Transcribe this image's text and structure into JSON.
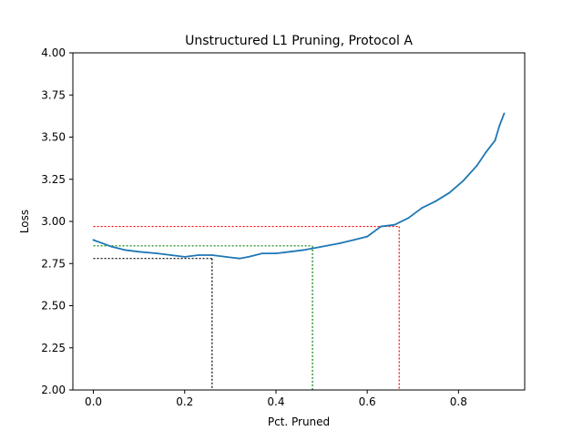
{
  "chart_data": {
    "type": "line",
    "title": "Unstructured L1 Pruning, Protocol A",
    "xlabel": "Pct. Pruned",
    "ylabel": "Loss",
    "xlim": [
      -0.045,
      0.945
    ],
    "ylim": [
      2.0,
      4.0
    ],
    "x_ticks": [
      0.0,
      0.2,
      0.4,
      0.6,
      0.8
    ],
    "x_tick_labels": [
      "0.0",
      "0.2",
      "0.4",
      "0.6",
      "0.8"
    ],
    "y_ticks": [
      2.0,
      2.25,
      2.5,
      2.75,
      3.0,
      3.25,
      3.5,
      3.75,
      4.0
    ],
    "y_tick_labels": [
      "2.00",
      "2.25",
      "2.50",
      "2.75",
      "3.00",
      "3.25",
      "3.50",
      "3.75",
      "4.00"
    ],
    "grid": false,
    "series": [
      {
        "color": "#1f77b4",
        "x": [
          0.0,
          0.02,
          0.04,
          0.07,
          0.1,
          0.14,
          0.17,
          0.2,
          0.23,
          0.26,
          0.29,
          0.32,
          0.34,
          0.37,
          0.4,
          0.43,
          0.46,
          0.5,
          0.54,
          0.57,
          0.6,
          0.63,
          0.66,
          0.69,
          0.72,
          0.75,
          0.78,
          0.81,
          0.84,
          0.86,
          0.88,
          0.89,
          0.9
        ],
        "y": [
          2.89,
          2.87,
          2.85,
          2.83,
          2.82,
          2.81,
          2.8,
          2.79,
          2.8,
          2.8,
          2.79,
          2.78,
          2.79,
          2.81,
          2.81,
          2.82,
          2.83,
          2.85,
          2.87,
          2.89,
          2.91,
          2.97,
          2.98,
          3.02,
          3.08,
          3.12,
          3.17,
          3.24,
          3.33,
          3.41,
          3.48,
          3.57,
          3.64
        ]
      }
    ],
    "reference_lines": [
      {
        "color": "#000000",
        "x": 0.26,
        "y": 2.78
      },
      {
        "color": "#008000",
        "x": 0.48,
        "y": 2.855
      },
      {
        "color": "#ff0000",
        "x": 0.67,
        "y": 2.97
      }
    ]
  }
}
